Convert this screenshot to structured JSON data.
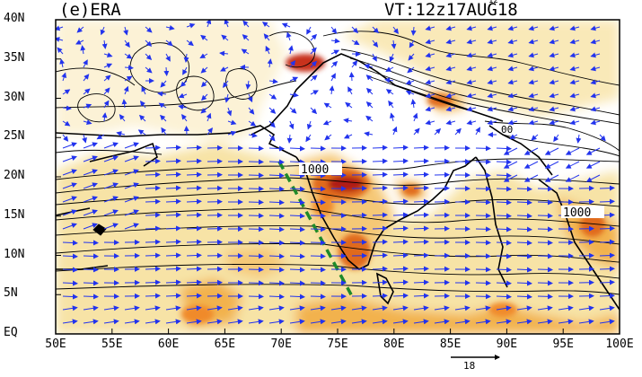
{
  "map": {
    "title": "(e)ERA",
    "valid_time": "VT:12z17AUG18",
    "valid_time_superscript": "12",
    "contour_label": "1000",
    "reference_vector_label": "18"
  },
  "axes": {
    "lat_labels": [
      "40N",
      "35N",
      "30N",
      "25N",
      "20N",
      "15N",
      "10N",
      "5N",
      "EQ"
    ],
    "lon_labels": [
      "50E",
      "55E",
      "60E",
      "65E",
      "70E",
      "75E",
      "80E",
      "85E",
      "90E",
      "95E",
      "100E"
    ],
    "lat_range": [
      0,
      40
    ],
    "lon_range": [
      50,
      100
    ]
  },
  "colors": {
    "shading_light": "#f7e3a6",
    "shading_mid": "#f2b24e",
    "shading_dark": "#e06a1a",
    "shading_max": "#b01a12",
    "wind_vectors": "#2233ee",
    "contours": "#000000",
    "dashed_line": "#1f8a2a"
  },
  "dashed_line": {
    "start": {
      "lon": 69.8,
      "lat": 22
    },
    "end": {
      "lon": 76.2,
      "lat": 5
    }
  }
}
